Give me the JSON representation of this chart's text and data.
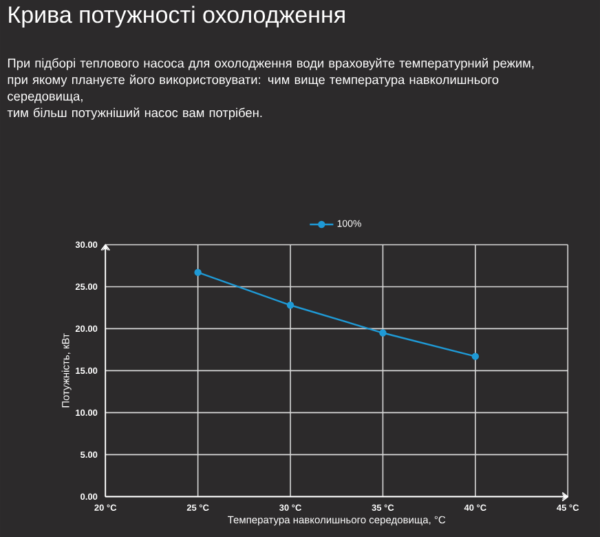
{
  "chart_data": {
    "type": "line",
    "title": "Крива потужності охолодження",
    "subtitle": "При підборі теплового насоса для охолодження води враховуйте температурний режим, при якому плануєте його використовувати: чим вище температура навколишнього середовища,",
    "annotations": [
      "тим більш потужніший насос вам потрібен."
    ],
    "xlabel": "Температура навколишнього середовища, °C",
    "ylabel": "Потужність, кВт",
    "x": [
      25,
      30,
      35,
      40
    ],
    "series": [
      {
        "name": "100%",
        "color": "#1f9ad6",
        "values": [
          26.7,
          22.8,
          19.5,
          16.7
        ]
      }
    ],
    "xlim": [
      20,
      45
    ],
    "ylim": [
      0,
      30
    ],
    "xticks": [
      {
        "value": 20,
        "label": "20 °C"
      },
      {
        "value": 25,
        "label": "25 °C"
      },
      {
        "value": 30,
        "label": "30 °C"
      },
      {
        "value": 35,
        "label": "35 °C"
      },
      {
        "value": 40,
        "label": "40 °C"
      },
      {
        "value": 45,
        "label": "45 °C"
      }
    ],
    "yticks": [
      {
        "value": 0,
        "label": "0.00"
      },
      {
        "value": 5,
        "label": "5.00"
      },
      {
        "value": 10,
        "label": "10.00"
      },
      {
        "value": 15,
        "label": "15.00"
      },
      {
        "value": 20,
        "label": "20.00"
      },
      {
        "value": 25,
        "label": "25.00"
      },
      {
        "value": 30,
        "label": "30.00"
      }
    ],
    "grid": true,
    "legend": "top",
    "marker": "circle",
    "line_style": "solid"
  }
}
